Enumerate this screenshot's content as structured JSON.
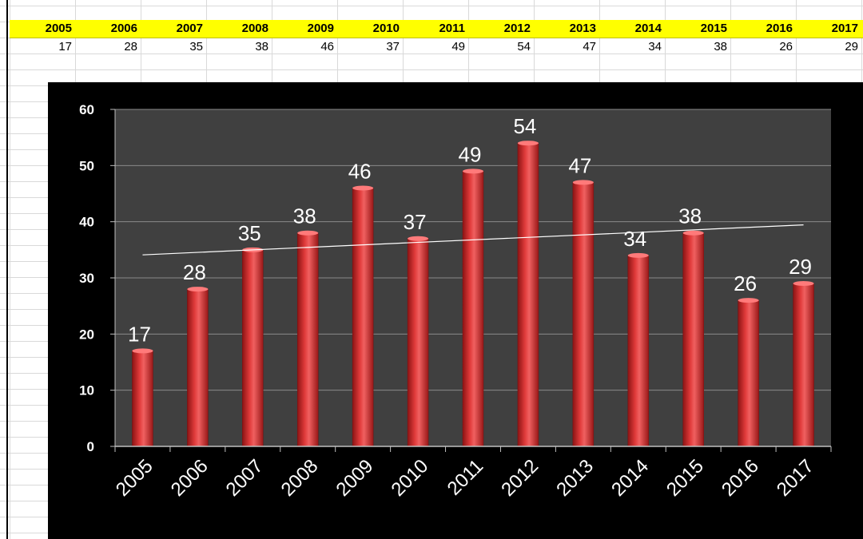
{
  "sheet": {
    "years": [
      "2005",
      "2006",
      "2007",
      "2008",
      "2009",
      "2010",
      "2011",
      "2012",
      "2013",
      "2014",
      "2015",
      "2016",
      "2017"
    ],
    "values": [
      "17",
      "28",
      "35",
      "38",
      "46",
      "37",
      "49",
      "54",
      "47",
      "34",
      "38",
      "26",
      "29"
    ]
  },
  "colors": {
    "header_fill": "#ffff00",
    "chart_background": "#000000",
    "plot_area": "#404040",
    "bar": "#d42a2a",
    "trendline": "#ffffff"
  },
  "chart_data": {
    "type": "bar",
    "title": "",
    "xlabel": "",
    "ylabel": "",
    "categories": [
      "2005",
      "2006",
      "2007",
      "2008",
      "2009",
      "2010",
      "2011",
      "2012",
      "2013",
      "2014",
      "2015",
      "2016",
      "2017"
    ],
    "values": [
      17,
      28,
      35,
      38,
      46,
      37,
      49,
      54,
      47,
      34,
      38,
      26,
      29
    ],
    "ylim": [
      0,
      60
    ],
    "yticks": [
      0,
      10,
      20,
      30,
      40,
      50,
      60
    ],
    "grid": true,
    "legend": "none",
    "data_labels": true,
    "trendline": "linear"
  }
}
